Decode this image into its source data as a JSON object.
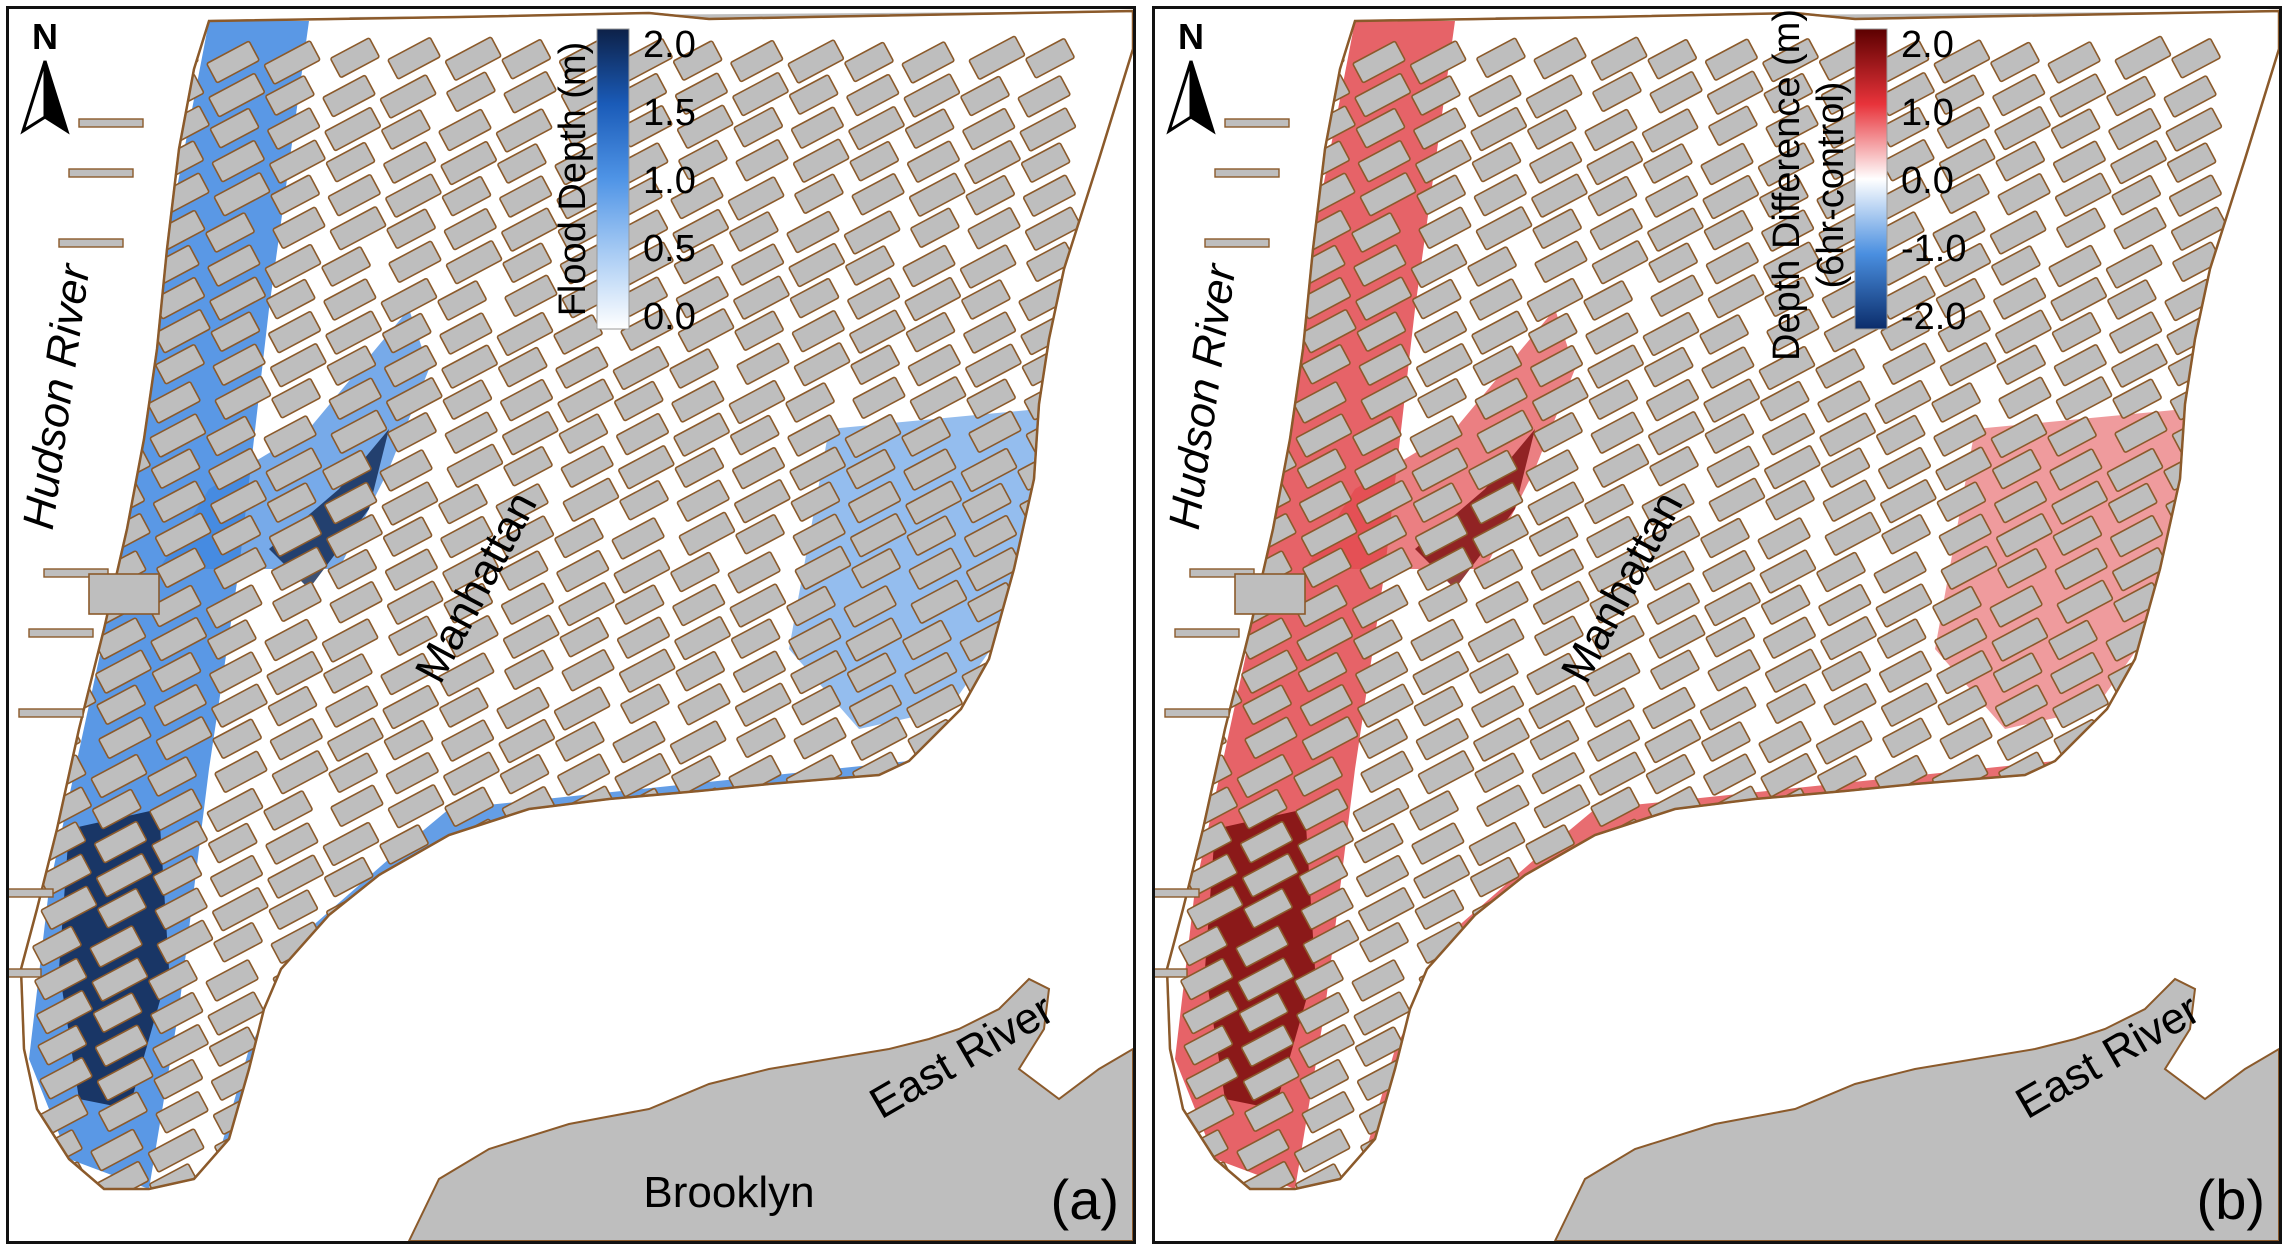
{
  "panels": [
    {
      "id": "a",
      "letter": "(a)",
      "north": "N",
      "legend": {
        "title": "Flood Depth (m)",
        "subtitle": "",
        "ticks": [
          "2.0",
          "1.5",
          "1.0",
          "0.5",
          "0.0"
        ],
        "colors": [
          "#0d2148",
          "#1a5bb8",
          "#4f94e6",
          "#a9ccf4",
          "#ffffff"
        ]
      },
      "flood_color": "#3d86e0",
      "flood_deep_color": "#0e2550"
    },
    {
      "id": "b",
      "letter": "(b)",
      "north": "N",
      "legend": {
        "title": "Depth Difference (m)",
        "subtitle": "(6hr-control)",
        "ticks": [
          "2.0",
          "1.0",
          "0.0",
          "-1.0",
          "-2.0"
        ],
        "colors": [
          "#5c0000",
          "#e8333a",
          "#ffffff",
          "#4a8fe0",
          "#0b2d6b"
        ]
      },
      "flood_color": "#e2484d",
      "flood_deep_color": "#7a0c0c"
    }
  ],
  "labels": {
    "hudson": "Hudson River",
    "manhattan": "Manhattan",
    "east_river": "East River",
    "brooklyn": "Brooklyn"
  },
  "colors": {
    "land": "#bebebe",
    "water": "#ffffff",
    "block_outline": "#8b5a2b",
    "frame": "#111111"
  }
}
